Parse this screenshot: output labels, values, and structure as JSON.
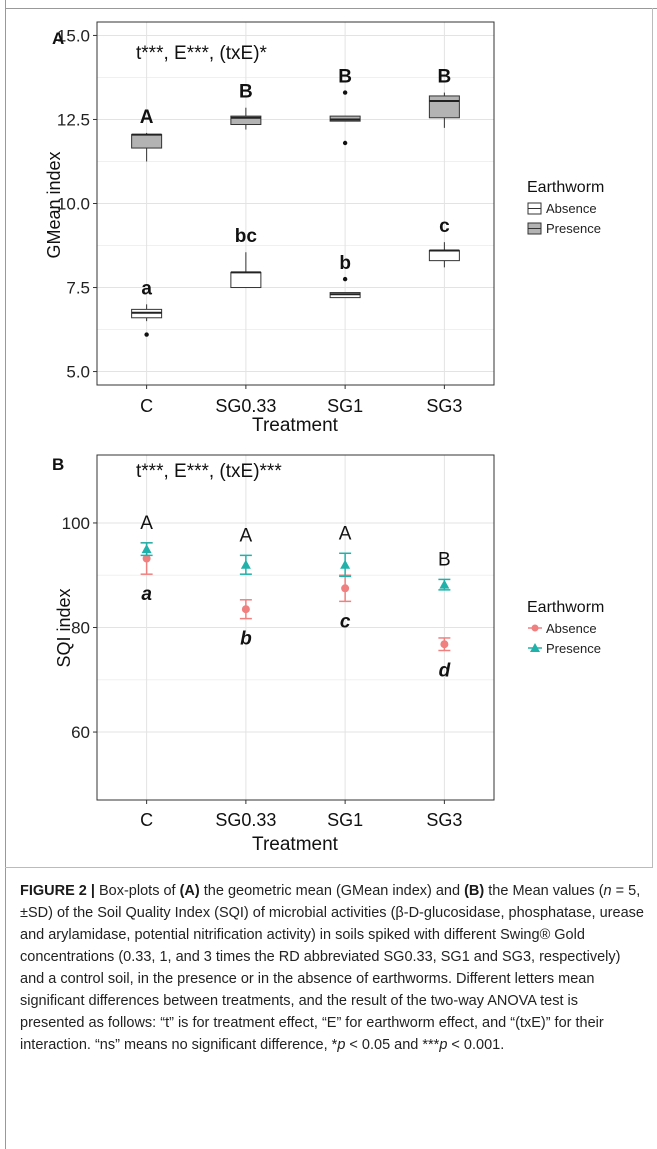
{
  "chart_data": [
    {
      "panel": "A",
      "type": "box",
      "annotation": "t***, E***, (txE)*",
      "xlabel": "Treatment",
      "ylabel": "GMean index",
      "categories": [
        "C",
        "SG0.33",
        "SG1",
        "SG3"
      ],
      "ylim": [
        4.6,
        15.4
      ],
      "yticks": [
        "5.0",
        "7.5",
        "10.0",
        "12.5",
        "15.0"
      ],
      "grid": true,
      "legend": {
        "title": "Earthworm",
        "position": "right",
        "entries": [
          "Absence",
          "Presence"
        ]
      },
      "series": [
        {
          "name": "Absence",
          "color": "#ffffff",
          "boxes": [
            {
              "q1": 6.6,
              "median": 6.75,
              "q3": 6.85,
              "whisker_low": 6.5,
              "whisker_high": 7.0,
              "outliers": [
                6.1
              ]
            },
            {
              "q1": 7.5,
              "median": 7.95,
              "q3": 7.95,
              "whisker_low": 7.5,
              "whisker_high": 8.55,
              "outliers": []
            },
            {
              "q1": 7.2,
              "median": 7.3,
              "q3": 7.35,
              "whisker_low": 7.2,
              "whisker_high": 7.35,
              "outliers": [
                7.75
              ]
            },
            {
              "q1": 8.3,
              "median": 8.6,
              "q3": 8.6,
              "whisker_low": 8.1,
              "whisker_high": 8.85,
              "outliers": []
            }
          ],
          "letters": [
            "a",
            "bc",
            "b",
            "c"
          ]
        },
        {
          "name": "Presence",
          "color": "#b3b3b3",
          "boxes": [
            {
              "q1": 11.65,
              "median": 12.05,
              "q3": 12.05,
              "whisker_low": 11.25,
              "whisker_high": 12.1,
              "outliers": []
            },
            {
              "q1": 12.35,
              "median": 12.55,
              "q3": 12.6,
              "whisker_low": 12.2,
              "whisker_high": 12.85,
              "outliers": []
            },
            {
              "q1": 12.45,
              "median": 12.5,
              "q3": 12.6,
              "whisker_low": 12.45,
              "whisker_high": 12.6,
              "outliers": [
                13.3,
                11.8
              ]
            },
            {
              "q1": 12.55,
              "median": 13.05,
              "q3": 13.2,
              "whisker_low": 12.25,
              "whisker_high": 13.3,
              "outliers": []
            }
          ],
          "letters": [
            "A",
            "B",
            "B",
            "B"
          ]
        }
      ]
    },
    {
      "panel": "B",
      "type": "scatter",
      "annotation": "t***, E***, (txE)***",
      "xlabel": "Treatment",
      "ylabel": "SQI index",
      "categories": [
        "C",
        "SG0.33",
        "SG1",
        "SG3"
      ],
      "ylim": [
        47,
        113
      ],
      "yticks": [
        "60",
        "80",
        "100"
      ],
      "grid": true,
      "legend": {
        "title": "Earthworm",
        "position": "right",
        "entries": [
          "Absence",
          "Presence"
        ]
      },
      "series": [
        {
          "name": "Absence",
          "color": "#f08080",
          "marker": "circle",
          "values": [
            93.2,
            83.5,
            87.5,
            76.8
          ],
          "sd": [
            3.0,
            1.8,
            2.5,
            1.2
          ],
          "letters": [
            "a",
            "b",
            "c",
            "d"
          ]
        },
        {
          "name": "Presence",
          "color": "#20b2aa",
          "marker": "triangle",
          "values": [
            95.0,
            92.0,
            92.0,
            88.2
          ],
          "sd": [
            1.2,
            1.8,
            2.2,
            1.0
          ],
          "letters": [
            "A",
            "A",
            "A",
            "B"
          ]
        }
      ]
    }
  ],
  "caption": {
    "figure_label": "FIGURE 2 |",
    "text_1": " Box-plots of ",
    "a_label": "(A)",
    "text_2": " the geometric mean (GMean index) and ",
    "b_label": "(B)",
    "text_3": " the Mean values (n = 5, ±SD) of the Soil Quality Index (SQI) of microbial activities (β-D-glucosidase, phosphatase, urease and arylamidase, potential nitrification activity) in soils spiked with different Swing® Gold concentrations (0.33, 1, and 3 times the RD abbreviated SG0.33, SG1 and SG3, respectively) and a control soil, in the presence or in the absence of earthworms. Different letters mean significant differences between treatments, and the result of the two-way ANOVA test is presented as follows: “t” is for treatment effect, “E” for earthworm effect, and “(txE)” for their interaction. “ns” means no significant difference, *p < 0.05 and ***p < 0.001."
  }
}
